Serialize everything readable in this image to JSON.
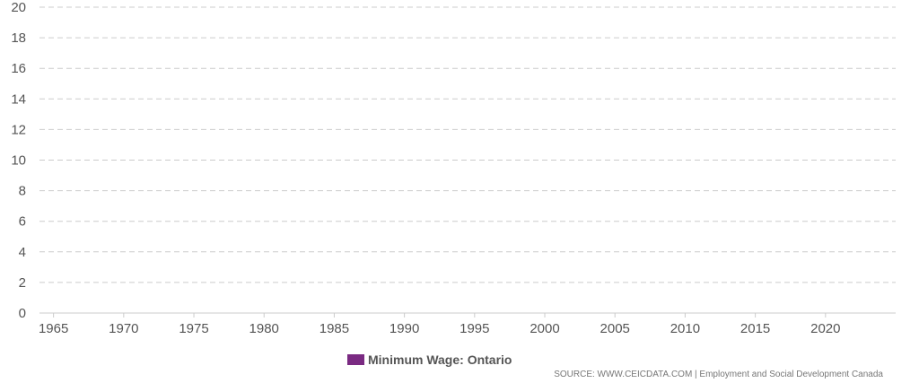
{
  "chart_data": {
    "type": "line",
    "title": "",
    "xlabel": "",
    "ylabel": "",
    "xlim": [
      1964,
      2025
    ],
    "ylim": [
      0,
      20
    ],
    "x_ticks": [
      "1965",
      "1970",
      "1975",
      "1980",
      "1985",
      "1990",
      "1995",
      "2000",
      "2005",
      "2010",
      "2015",
      "2020"
    ],
    "y_ticks": [
      "0",
      "2",
      "4",
      "6",
      "8",
      "10",
      "12",
      "14",
      "16",
      "18",
      "20"
    ],
    "grid": "horizontal dashed",
    "series": [
      {
        "name": "Minimum Wage: Ontario",
        "color": "#7a2a82",
        "x": [],
        "values": []
      }
    ]
  },
  "legend": {
    "label": "Minimum Wage: Ontario",
    "color": "#7a2a82",
    "placement": "bottom-center"
  },
  "source": "SOURCE: WWW.CEICDATA.COM | Employment and Social Development Canada"
}
